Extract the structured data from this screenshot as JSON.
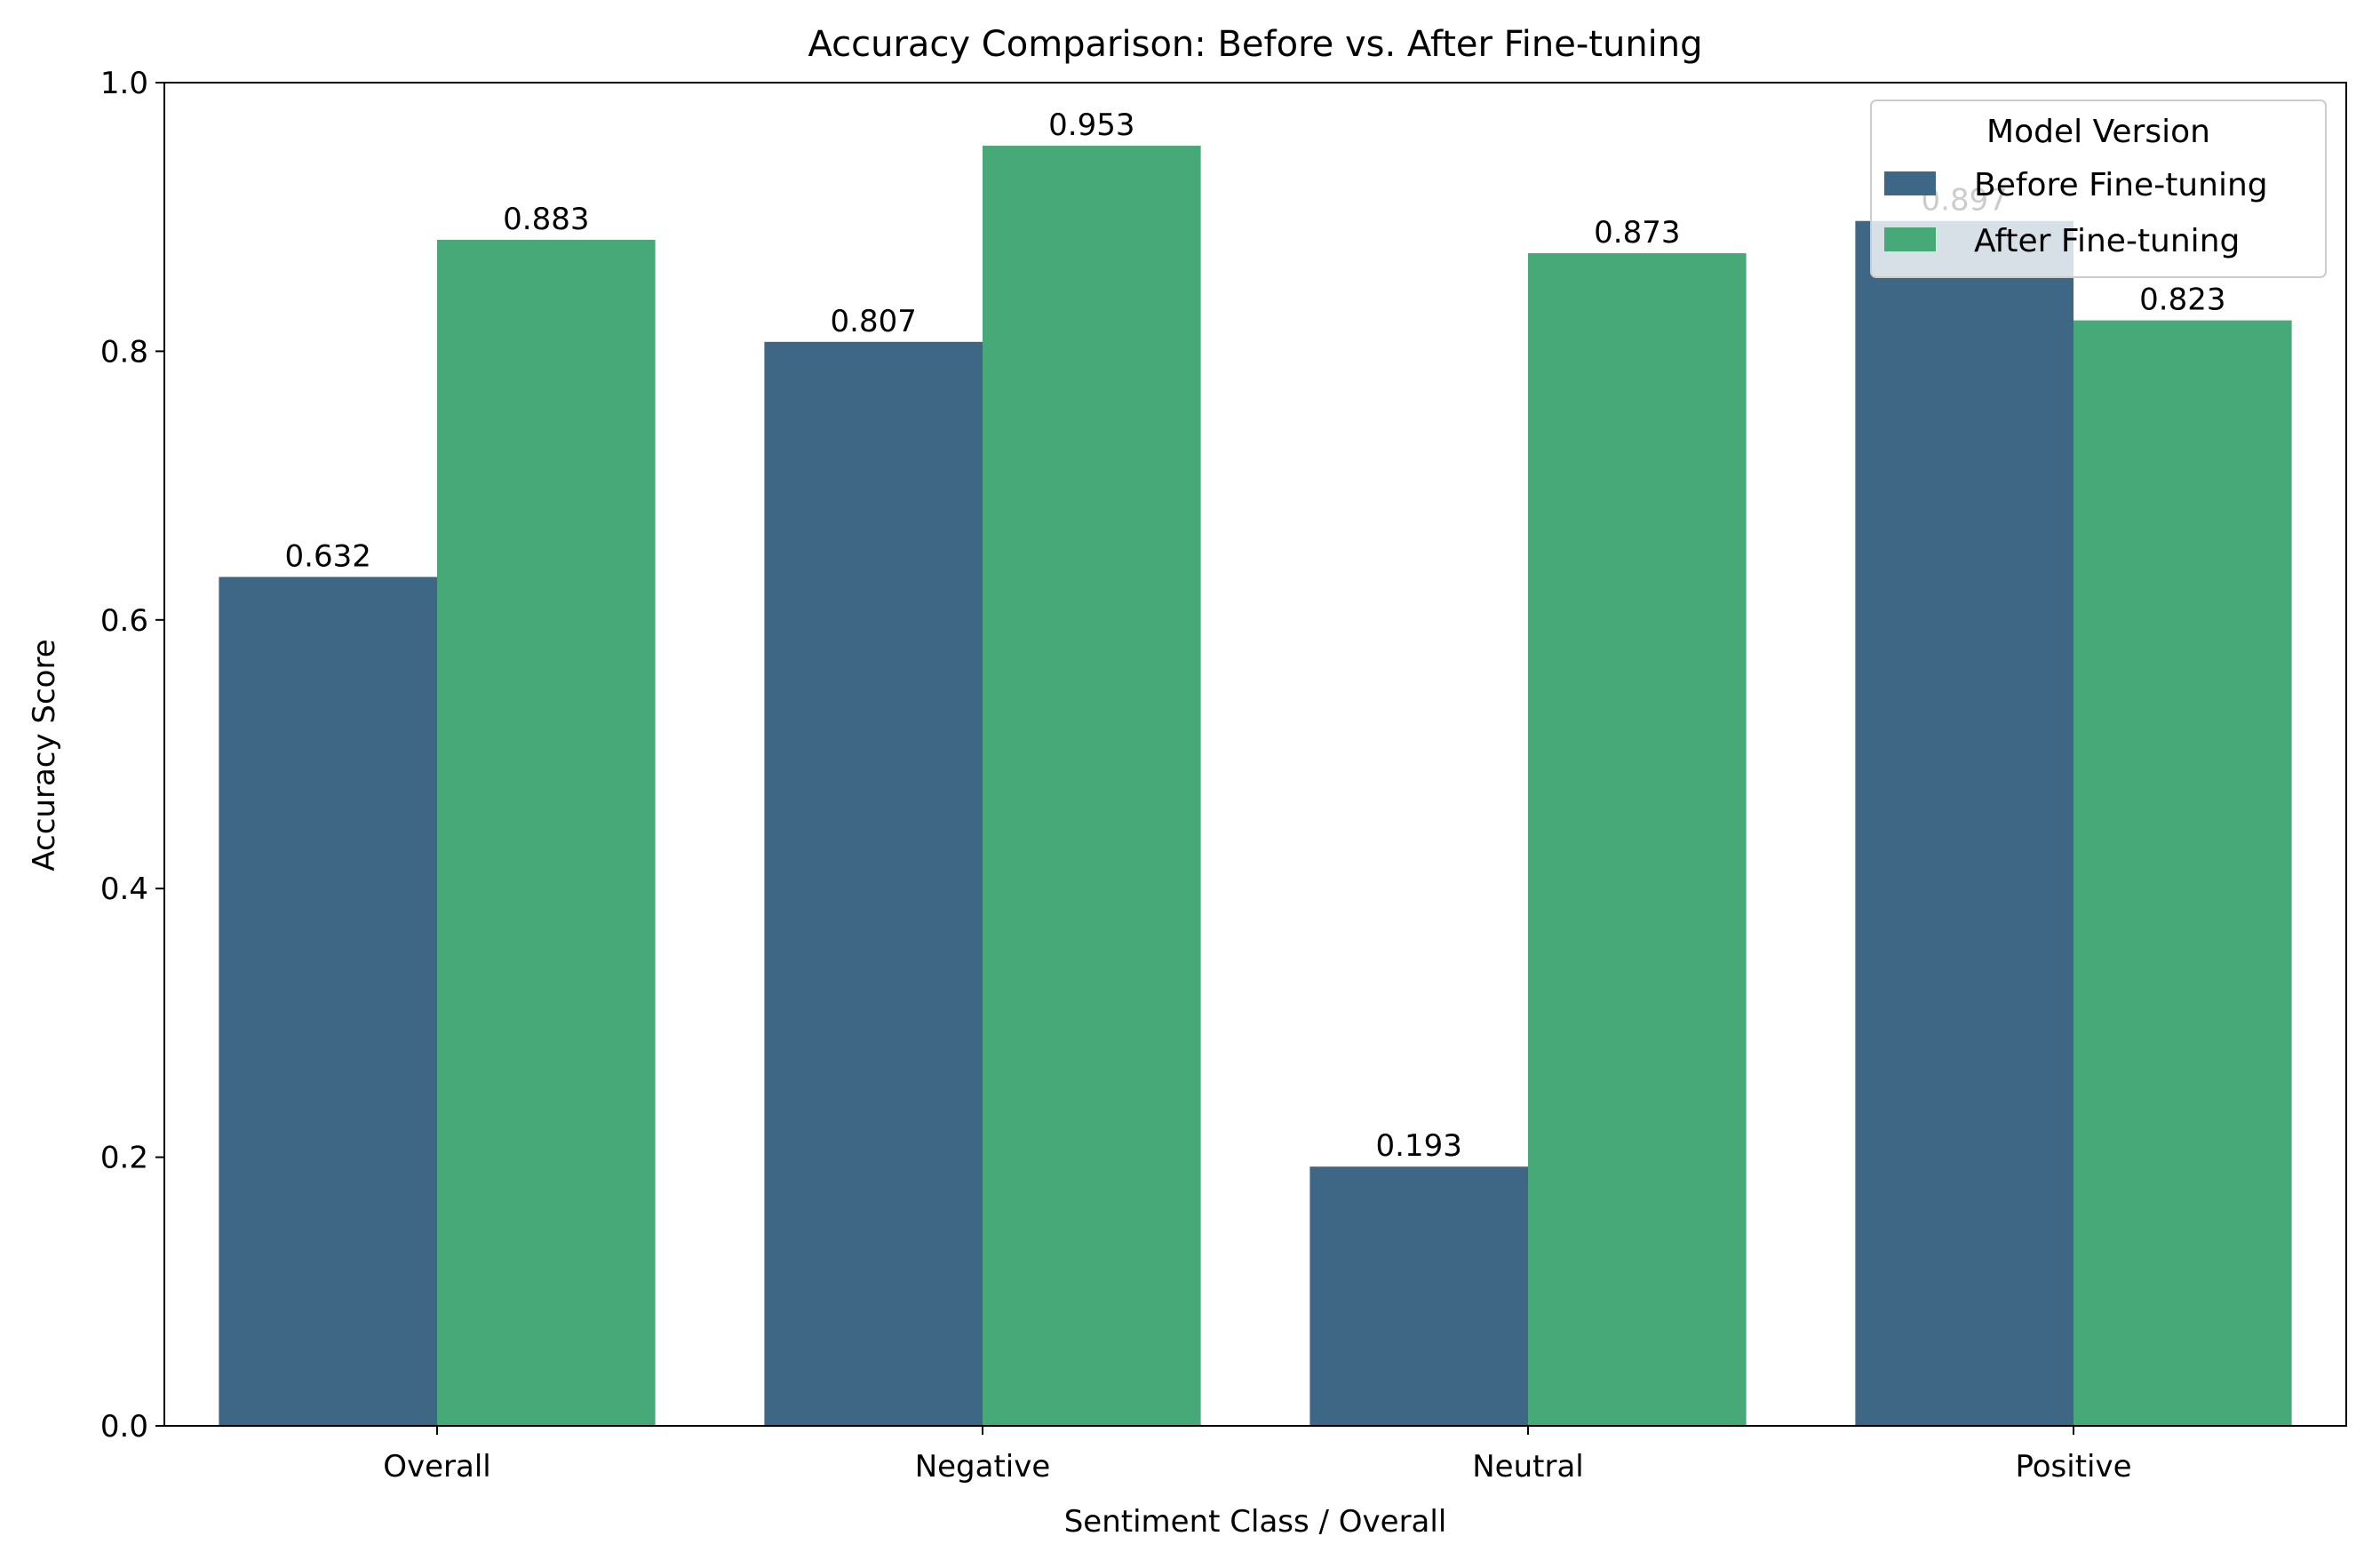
{
  "chart_data": {
    "type": "bar",
    "title": "Accuracy Comparison: Before vs. After Fine-tuning",
    "xlabel": "Sentiment Class / Overall",
    "ylabel": "Accuracy Score",
    "categories": [
      "Overall",
      "Negative",
      "Neutral",
      "Positive"
    ],
    "series": [
      {
        "name": "Before Fine-tuning",
        "values": [
          0.632,
          0.807,
          0.193,
          0.897
        ],
        "labels": [
          "0.632",
          "0.807",
          "0.193",
          "0.897"
        ],
        "color": "#3e6685"
      },
      {
        "name": "After Fine-tuning",
        "values": [
          0.883,
          0.953,
          0.873,
          0.823
        ],
        "labels": [
          "0.883",
          "0.953",
          "0.873",
          "0.823"
        ],
        "color": "#47a878"
      }
    ],
    "ylim": [
      0,
      1
    ],
    "yticks": [
      0.0,
      0.2,
      0.4,
      0.6,
      0.8,
      1.0
    ],
    "ytick_labels": [
      "0.0",
      "0.2",
      "0.4",
      "0.6",
      "0.8",
      "1.0"
    ],
    "grid": false,
    "legend": {
      "title": "Model Version",
      "placement": "top-right"
    }
  }
}
